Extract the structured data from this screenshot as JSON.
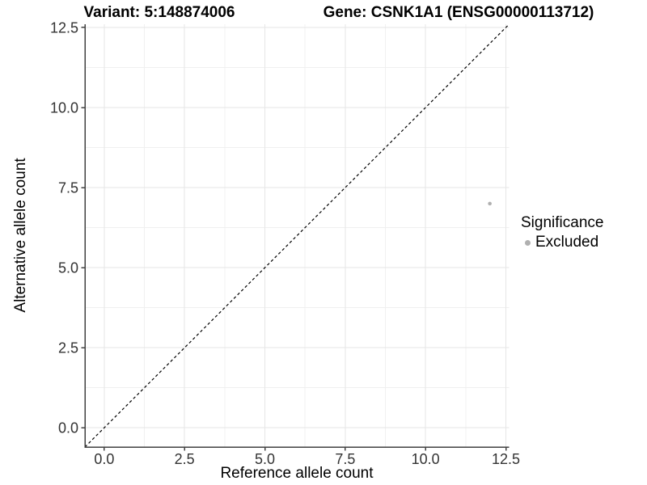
{
  "chart_data": {
    "type": "scatter",
    "title_left": "Variant: 5:148874006",
    "title_right": "Gene: CSNK1A1 (ENSG00000113712)",
    "xlabel": "Reference allele count",
    "ylabel": "Alternative allele count",
    "xlim": [
      -0.6,
      12.6
    ],
    "ylim": [
      -0.6,
      12.6
    ],
    "x_ticks": [
      0,
      2.5,
      5,
      7.5,
      10,
      12.5
    ],
    "y_ticks": [
      0,
      2.5,
      5,
      7.5,
      10,
      12.5
    ],
    "x_tick_labels": [
      "0.0",
      "2.5",
      "5.0",
      "7.5",
      "10.0",
      "12.5"
    ],
    "y_tick_labels": [
      "0.0",
      "2.5",
      "5.0",
      "7.5",
      "10.0",
      "12.5"
    ],
    "minor_ticks": [
      1.25,
      3.75,
      6.25,
      8.75,
      11.25
    ],
    "grid": true,
    "reference_line": {
      "type": "identity",
      "slope": 1,
      "intercept": 0,
      "style": "dashed",
      "color": "#000000"
    },
    "series": [
      {
        "name": "Excluded",
        "color": "#b0b0b0",
        "points": [
          {
            "x": 12,
            "y": 7
          }
        ]
      }
    ],
    "legend": {
      "title": "Significance",
      "position": "right",
      "items": [
        {
          "label": "Excluded",
          "color": "#b0b0b0"
        }
      ]
    },
    "colors": {
      "background": "#ffffff",
      "grid_major": "#e6e6e6",
      "grid_minor": "#f0f0f0",
      "axis_line": "#404040",
      "tick_text": "#333333",
      "point": "#b0b0b0",
      "reference_line": "#000000"
    }
  }
}
